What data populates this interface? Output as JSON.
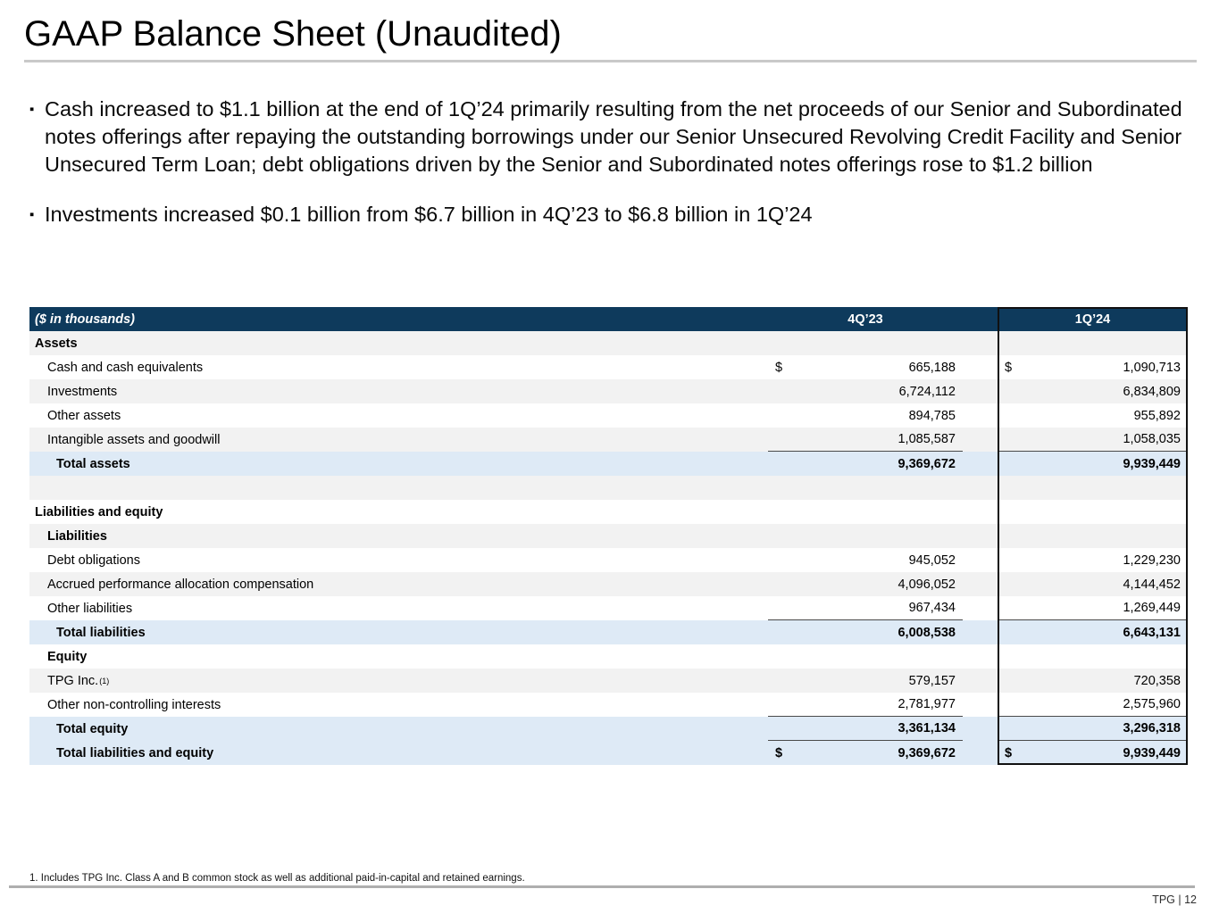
{
  "slide": {
    "title": "GAAP Balance Sheet (Unaudited)",
    "bullets": [
      "Cash increased to $1.1 billion at the end of 1Q’24 primarily resulting from the net proceeds of our Senior and Subordinated notes offerings after repaying the outstanding borrowings under our Senior Unsecured Revolving Credit Facility and Senior Unsecured Term Loan; debt obligations driven by the Senior and Subordinated notes offerings rose to $1.2 billion",
      "Investments increased $0.1 billion from $6.7 billion in 4Q’23 to $6.8 billion in 1Q’24"
    ],
    "footnote": "1. Includes TPG Inc. Class A and B common stock as well as additional paid-in-capital and retained earnings.",
    "footer": "TPG | 12"
  },
  "colors": {
    "header_navy": "#0E3A5C",
    "row_gray": "#F2F2F2",
    "row_blue": "#DEEAF6",
    "highlight_border": "#111111"
  },
  "table": {
    "header": {
      "label": "($ in thousands)",
      "col1": "4Q’23",
      "col2": "1Q’24"
    },
    "rows": [
      {
        "label": "Assets",
        "style": "section",
        "indent": 0,
        "shade": "gray"
      },
      {
        "label": "Cash and cash equivalents",
        "style": "item",
        "indent": 1,
        "shade": "white",
        "d1": "$",
        "v1": "665,188",
        "d2": "$",
        "v2": "1,090,713"
      },
      {
        "label": "Investments",
        "style": "item",
        "indent": 1,
        "shade": "gray",
        "v1": "6,724,112",
        "v2": "6,834,809"
      },
      {
        "label": "Other assets",
        "style": "item",
        "indent": 1,
        "shade": "white",
        "v1": "894,785",
        "v2": "955,892"
      },
      {
        "label": "Intangible assets and goodwill",
        "style": "item",
        "indent": 1,
        "shade": "gray",
        "v1": "1,085,587",
        "v2": "1,058,035",
        "rule": true
      },
      {
        "label": "Total assets",
        "style": "total",
        "indent": 2,
        "shade": "blue",
        "v1": "9,369,672",
        "v2": "9,939,449"
      },
      {
        "label": "",
        "style": "blank",
        "indent": 0,
        "shade": "gray"
      },
      {
        "label": "Liabilities and equity",
        "style": "section",
        "indent": 0,
        "shade": "white"
      },
      {
        "label": "Liabilities",
        "style": "section",
        "indent": 1,
        "shade": "gray"
      },
      {
        "label": "Debt obligations",
        "style": "item",
        "indent": 1,
        "shade": "white",
        "v1": "945,052",
        "v2": "1,229,230"
      },
      {
        "label": "Accrued performance allocation compensation",
        "style": "item",
        "indent": 1,
        "shade": "gray",
        "v1": "4,096,052",
        "v2": "4,144,452"
      },
      {
        "label": "Other liabilities",
        "style": "item",
        "indent": 1,
        "shade": "white",
        "v1": "967,434",
        "v2": "1,269,449",
        "rule": true
      },
      {
        "label": "Total liabilities",
        "style": "total",
        "indent": 2,
        "shade": "blue",
        "v1": "6,008,538",
        "v2": "6,643,131"
      },
      {
        "label": "Equity",
        "style": "section",
        "indent": 1,
        "shade": "white"
      },
      {
        "label": "TPG Inc.",
        "sup": "(1)",
        "style": "item",
        "indent": 1,
        "shade": "gray",
        "v1": "579,157",
        "v2": "720,358"
      },
      {
        "label": "Other non-controlling interests",
        "style": "item",
        "indent": 1,
        "shade": "white",
        "v1": "2,781,977",
        "v2": "2,575,960",
        "rule": true
      },
      {
        "label": "Total equity",
        "style": "total",
        "indent": 2,
        "shade": "blue",
        "v1": "3,361,134",
        "v2": "3,296,318",
        "rule": true
      },
      {
        "label": "Total liabilities and equity",
        "style": "total",
        "indent": 2,
        "shade": "blue",
        "d1": "$",
        "v1": "9,369,672",
        "d2": "$",
        "v2": "9,939,449"
      }
    ]
  }
}
